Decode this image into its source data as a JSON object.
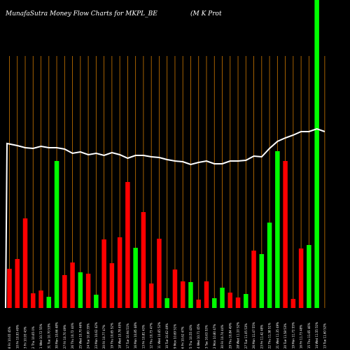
{
  "header": {
    "left": "MunafaSutra  Money Flow  Charts for MKPL_BE",
    "right": "(M K Prot"
  },
  "colors": {
    "background": "#000000",
    "up": "#00ff00",
    "down": "#ff0000",
    "grid": "#cc7700",
    "line": "#ffffff"
  },
  "chart_data": {
    "type": "bar",
    "title": "MunafaSutra  Money Flow  Charts for MKPL_BE",
    "categories": [
      "08 Fri 10.65 45%",
      "10 Fri 10.93 49%",
      "03 Fri 10.93 ...",
      "02 Thu 10.65 ...",
      "01 Wed 10.72 ...",
      "31 Tue 10.7 ...",
      "30 Mon 10.66 ...",
      "27 Fri 10.70 ...",
      "26 Thu 10.72 ...",
      "25 Wed 10.7 ...",
      "24 Tue 10.80 ...",
      "23 Mon 10.6 ...",
      "20 Fri 10.77 ...",
      "19 Thu 10.6 ...",
      "18 Wed 10.78 ...",
      "17 Tue 10.94 ...",
      "16 Mon 10.8 ...",
      "13 Fri 10.81 ...",
      "12 Thu 10.73 ...",
      "11 Wed 10.6 ...",
      "10 Tue 10.62 ...",
      "09 Mon 10.69 ...",
      "06 Fri 10.62 ...",
      "05 Thu 10.55 ...",
      "04 Wed 10.71 ...",
      "03 Tue 10.63 ...",
      "02 Mon 10.80 ...",
      "30 Fri 10.74 ...",
      "29 Thu 10.84 ...",
      "28 Wed 11.10 ...",
      "27 Tue 11.05 ...",
      "26 Mon 11.47 ...",
      "23 Fri 11.42 ...",
      "22 Thu 11.38 ...",
      "21 Wed 11.3 ...",
      "20 Tue 11.58 ...",
      "19 Mon 11.72 ...",
      "16 Fri 11.73 ...",
      "15 Thu 11.6 ...",
      "14 Wed 11.5 ...",
      "13 Tue 11.6 ..."
    ],
    "x_tick_labels": [
      "8 Fri 10.65 45%",
      "10 Fri 10.93 49%",
      "3 Fri 10.93 43%",
      "2 Thu 10.65 0%",
      "1 Wed 10.72 55%",
      "31 Tue 10.70 53%",
      "30 Mon 10.66 48%",
      "27 Fri 10.70 49%",
      "26 Thu 10.72 44%",
      "25 Wed 10.70 46%",
      "24 Tue 10.80 35%",
      "23 Mon 10.62 42%",
      "20 Fri 10.77 47%",
      "19 Thu 10.65 52%",
      "18 Wed 10.78 45%",
      "17 Tue 10.94 51%",
      "16 Mon 10.85 48%",
      "13 Fri 10.81 43%",
      "12 Thu 10.73 47%",
      "11 Wed 10.65 52%",
      "10 Tue 10.62 49%",
      "9 Mon 10.69 51%",
      "6 Fri 10.62 47%",
      "5 Thu 10.55 43%",
      "4 Wed 10.71 45%",
      "3 Tue 10.63 53%",
      "2 Mon 10.80 47%",
      "30 Fri 10.74 44%",
      "29 Thu 10.84 49%",
      "28 Wed 11.10 52%",
      "27 Tue 11.05 53%",
      "26 Mon 11.47 55%",
      "23 Fri 11.42 48%",
      "22 Thu 11.38 51%",
      "21 Wed 11.35 49%",
      "20 Tue 11.58 53%",
      "19 Mon 11.72 55%",
      "16 Fri 11.73 48%",
      "15 Thu 11.65 46%",
      "14 Wed 11.55 51%",
      "13 Tue 11.60 52%"
    ],
    "series": [
      {
        "values": [
          56,
          70,
          128,
          21,
          25,
          16,
          210,
          47,
          65,
          51,
          49,
          19,
          98,
          64,
          101,
          180,
          86,
          137,
          35,
          99,
          14,
          55,
          38,
          37,
          12,
          38,
          14,
          29,
          22,
          15,
          20,
          82,
          77,
          122,
          224,
          210,
          13,
          85,
          90,
          450,
          0
        ],
        "directions": [
          "down",
          "down",
          "down",
          "down",
          "down",
          "up",
          "up",
          "down",
          "down",
          "up",
          "down",
          "up",
          "down",
          "down",
          "down",
          "down",
          "up",
          "down",
          "down",
          "down",
          "up",
          "down",
          "down",
          "up",
          "down",
          "down",
          "up",
          "up",
          "down",
          "down",
          "up",
          "down",
          "up",
          "up",
          "up",
          "down",
          "down",
          "down",
          "up",
          "up",
          "up"
        ]
      },
      {
        "name": "Money Flow",
        "values": [
          235,
          232,
          229,
          228,
          231,
          229,
          229,
          227,
          221,
          223,
          219,
          221,
          218,
          222,
          219,
          214,
          218,
          218,
          216,
          215,
          212,
          210,
          209,
          205,
          208,
          210,
          206,
          206,
          210,
          210,
          211,
          217,
          216,
          228,
          238,
          243,
          247,
          252,
          252,
          256,
          252
        ]
      }
    ],
    "ylim": [
      0,
      440
    ],
    "xlabel": "",
    "ylabel": "",
    "grid": true,
    "legend": "none"
  }
}
